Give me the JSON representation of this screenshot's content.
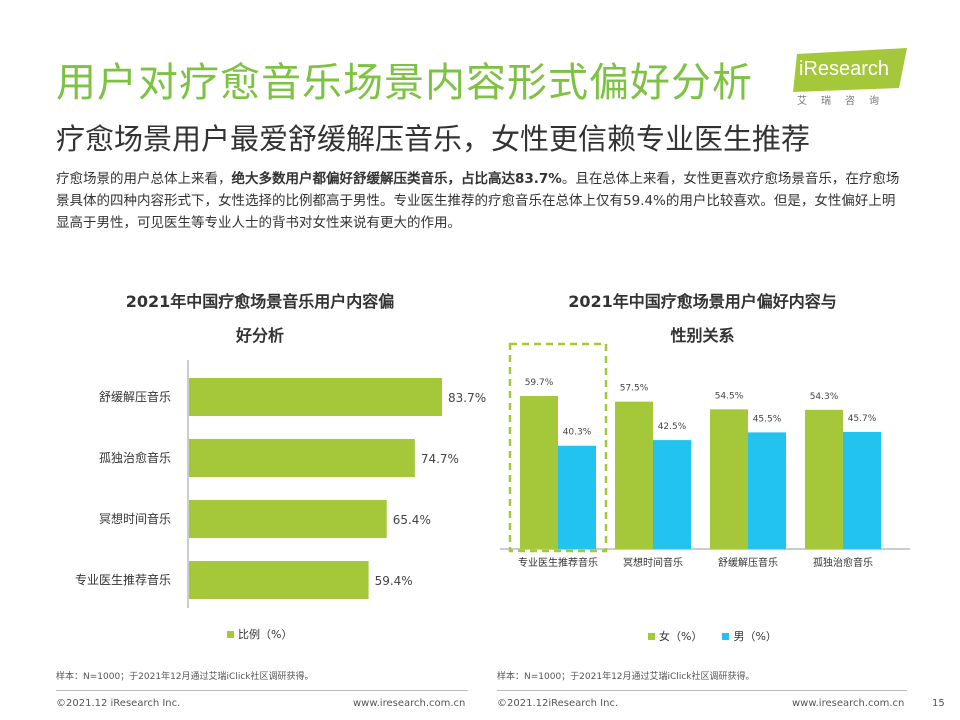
{
  "header": {
    "title": "用户对疗愈音乐场景内容形式偏好分析",
    "subtitle": "疗愈场景用户最爱舒缓解压音乐，女性更信赖专业医生推荐"
  },
  "logo": {
    "brand": "iResearch",
    "cn": "艾瑞咨询",
    "brand_color": "#a5c83a"
  },
  "body": {
    "p1": "疗愈场景的用户总体上来看，",
    "p1_bold": "绝大多数用户都偏好舒缓解压类音乐，占比高达83.7%",
    "p2": "。且在总体上来看，女性更喜欢疗愈场景音乐，在疗愈场景具体的四种内容形式下，女性选择的比例都高于男性。专业医生推荐的疗愈音乐在总体上仅有59.4%的用户比较喜欢。但是，女性偏好上明显高于男性，可见医生等专业人士的背书对女性来说有更大的作用。"
  },
  "chart_data": [
    {
      "type": "bar",
      "orientation": "horizontal",
      "title_line1": "2021年中国疗愈场景音乐用户内容偏",
      "title_line2": "好分析",
      "categories": [
        "舒缓解压音乐",
        "孤独治愈音乐",
        "冥想时间音乐",
        "专业医生推荐音乐"
      ],
      "values": [
        83.7,
        74.7,
        65.4,
        59.4
      ],
      "value_labels": [
        "83.7%",
        "74.7%",
        "65.4%",
        "59.4%"
      ],
      "legend": "比例（%）",
      "color": "#a5c83a",
      "xlim": [
        0,
        100
      ]
    },
    {
      "type": "bar",
      "orientation": "vertical",
      "title_line1": "2021年中国疗愈场景用户偏好内容与",
      "title_line2": "性别关系",
      "categories": [
        "专业医生推荐音乐",
        "冥想时间音乐",
        "舒缓解压音乐",
        "孤独治愈音乐"
      ],
      "series": [
        {
          "name": "女（%）",
          "values": [
            59.7,
            57.5,
            54.5,
            54.3
          ],
          "labels": [
            "59.7%",
            "57.5%",
            "54.5%",
            "54.3%"
          ],
          "color": "#a5c83a"
        },
        {
          "name": "男（%）",
          "values": [
            40.3,
            42.5,
            45.5,
            45.7
          ],
          "labels": [
            "40.3%",
            "42.5%",
            "45.5%",
            "45.7%"
          ],
          "color": "#22c4ef"
        }
      ],
      "highlight": "专业医生推荐音乐",
      "highlight_color": "#a5c83a",
      "ylim": [
        0,
        100
      ]
    }
  ],
  "notes": {
    "left": "样本：N=1000；于2021年12月通过艾瑞iClick社区调研获得。",
    "right": "样本：N=1000；于2021年12月通过艾瑞iClick社区调研获得。"
  },
  "footer": {
    "copyright_left": "©2021.12 iResearch Inc.",
    "url_left": "www.iresearch.com.cn",
    "copyright_right": "©2021.12iResearch Inc.",
    "url_right": "www.iresearch.com.cn",
    "page": "15"
  }
}
